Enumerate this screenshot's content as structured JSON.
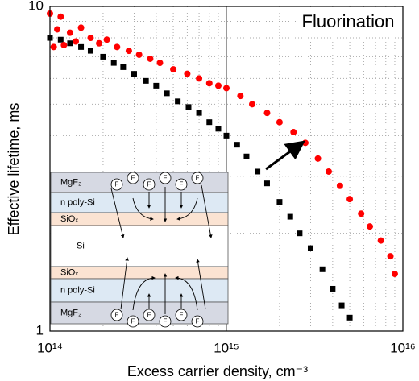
{
  "chart_data": {
    "type": "scatter",
    "annotation": "Fluorination",
    "xlabel": "Excess carrier density, cm⁻³",
    "ylabel": "Effective lifetime, ms",
    "xscale": "log",
    "yscale": "log",
    "xlim": [
      100000000000000.0,
      1e+16
    ],
    "ylim": [
      1,
      10
    ],
    "xticks": [
      {
        "value": 100000000000000.0,
        "label": "10¹⁴"
      },
      {
        "value": 1000000000000000.0,
        "label": "10¹⁵"
      },
      {
        "value": 1e+16,
        "label": "10¹⁶"
      }
    ],
    "yticks": [
      1,
      10
    ],
    "xminorticks": [
      200000000000000.0,
      300000000000000.0,
      400000000000000.0,
      500000000000000.0,
      600000000000000.0,
      700000000000000.0,
      800000000000000.0,
      900000000000000.0,
      2000000000000000.0,
      3000000000000000.0,
      4000000000000000.0,
      5000000000000000.0,
      6000000000000000.0,
      7000000000000000.0,
      8000000000000000.0,
      9000000000000000.0
    ],
    "yminorticks": [
      2,
      3,
      4,
      5,
      6,
      7,
      8,
      9
    ],
    "grid": true,
    "series": [
      {
        "color": "#000000",
        "marker": "square",
        "x": [
          100000000000000.0,
          115000000000000.0,
          130000000000000.0,
          150000000000000.0,
          170000000000000.0,
          200000000000000.0,
          230000000000000.0,
          260000000000000.0,
          300000000000000.0,
          350000000000000.0,
          400000000000000.0,
          460000000000000.0,
          530000000000000.0,
          610000000000000.0,
          700000000000000.0,
          800000000000000.0,
          900000000000000.0,
          1000000000000000.0,
          1150000000000000.0,
          1300000000000000.0,
          1500000000000000.0,
          1700000000000000.0,
          2000000000000000.0,
          2300000000000000.0,
          2600000000000000.0,
          3000000000000000.0,
          3500000000000000.0,
          4000000000000000.0,
          4500000000000000.0,
          5000000000000000.0
        ],
        "values": [
          8.0,
          7.9,
          7.7,
          7.5,
          7.3,
          7.0,
          6.7,
          6.5,
          6.2,
          5.9,
          5.7,
          5.4,
          5.1,
          4.9,
          4.7,
          4.4,
          4.2,
          4.0,
          3.75,
          3.45,
          3.1,
          2.85,
          2.5,
          2.25,
          2.0,
          1.8,
          1.55,
          1.35,
          1.2,
          1.1
        ]
      },
      {
        "color": "#ff0000",
        "marker": "circle",
        "x": [
          100000000000000.0,
          105000000000000.0,
          110000000000000.0,
          115000000000000.0,
          120000000000000.0,
          130000000000000.0,
          140000000000000.0,
          150000000000000.0,
          170000000000000.0,
          190000000000000.0,
          210000000000000.0,
          240000000000000.0,
          280000000000000.0,
          320000000000000.0,
          370000000000000.0,
          420000000000000.0,
          500000000000000.0,
          600000000000000.0,
          700000000000000.0,
          800000000000000.0,
          900000000000000.0,
          1000000000000000.0,
          1200000000000000.0,
          1400000000000000.0,
          1700000000000000.0,
          2000000000000000.0,
          2400000000000000.0,
          2800000000000000.0,
          3300000000000000.0,
          3800000000000000.0,
          4400000000000000.0,
          5000000000000000.0,
          5800000000000000.0,
          6500000000000000.0,
          7500000000000000.0,
          8500000000000000.0,
          9000000000000000.0
        ],
        "values": [
          9.5,
          7.5,
          8.5,
          9.3,
          7.6,
          8.3,
          7.8,
          8.6,
          8.0,
          7.7,
          7.9,
          7.5,
          7.3,
          7.1,
          6.9,
          6.7,
          6.4,
          6.2,
          6.0,
          5.8,
          5.7,
          5.6,
          5.3,
          5.0,
          4.7,
          4.4,
          4.1,
          3.8,
          3.4,
          3.1,
          2.8,
          2.55,
          2.3,
          2.1,
          1.9,
          1.7,
          1.5
        ]
      }
    ]
  },
  "inset": {
    "ion_label": "F",
    "layers": [
      "MgF₂",
      "n poly-Si",
      "SiOₓ",
      "Si",
      "SiOₓ",
      "n poly-Si",
      "MgF₂"
    ]
  }
}
